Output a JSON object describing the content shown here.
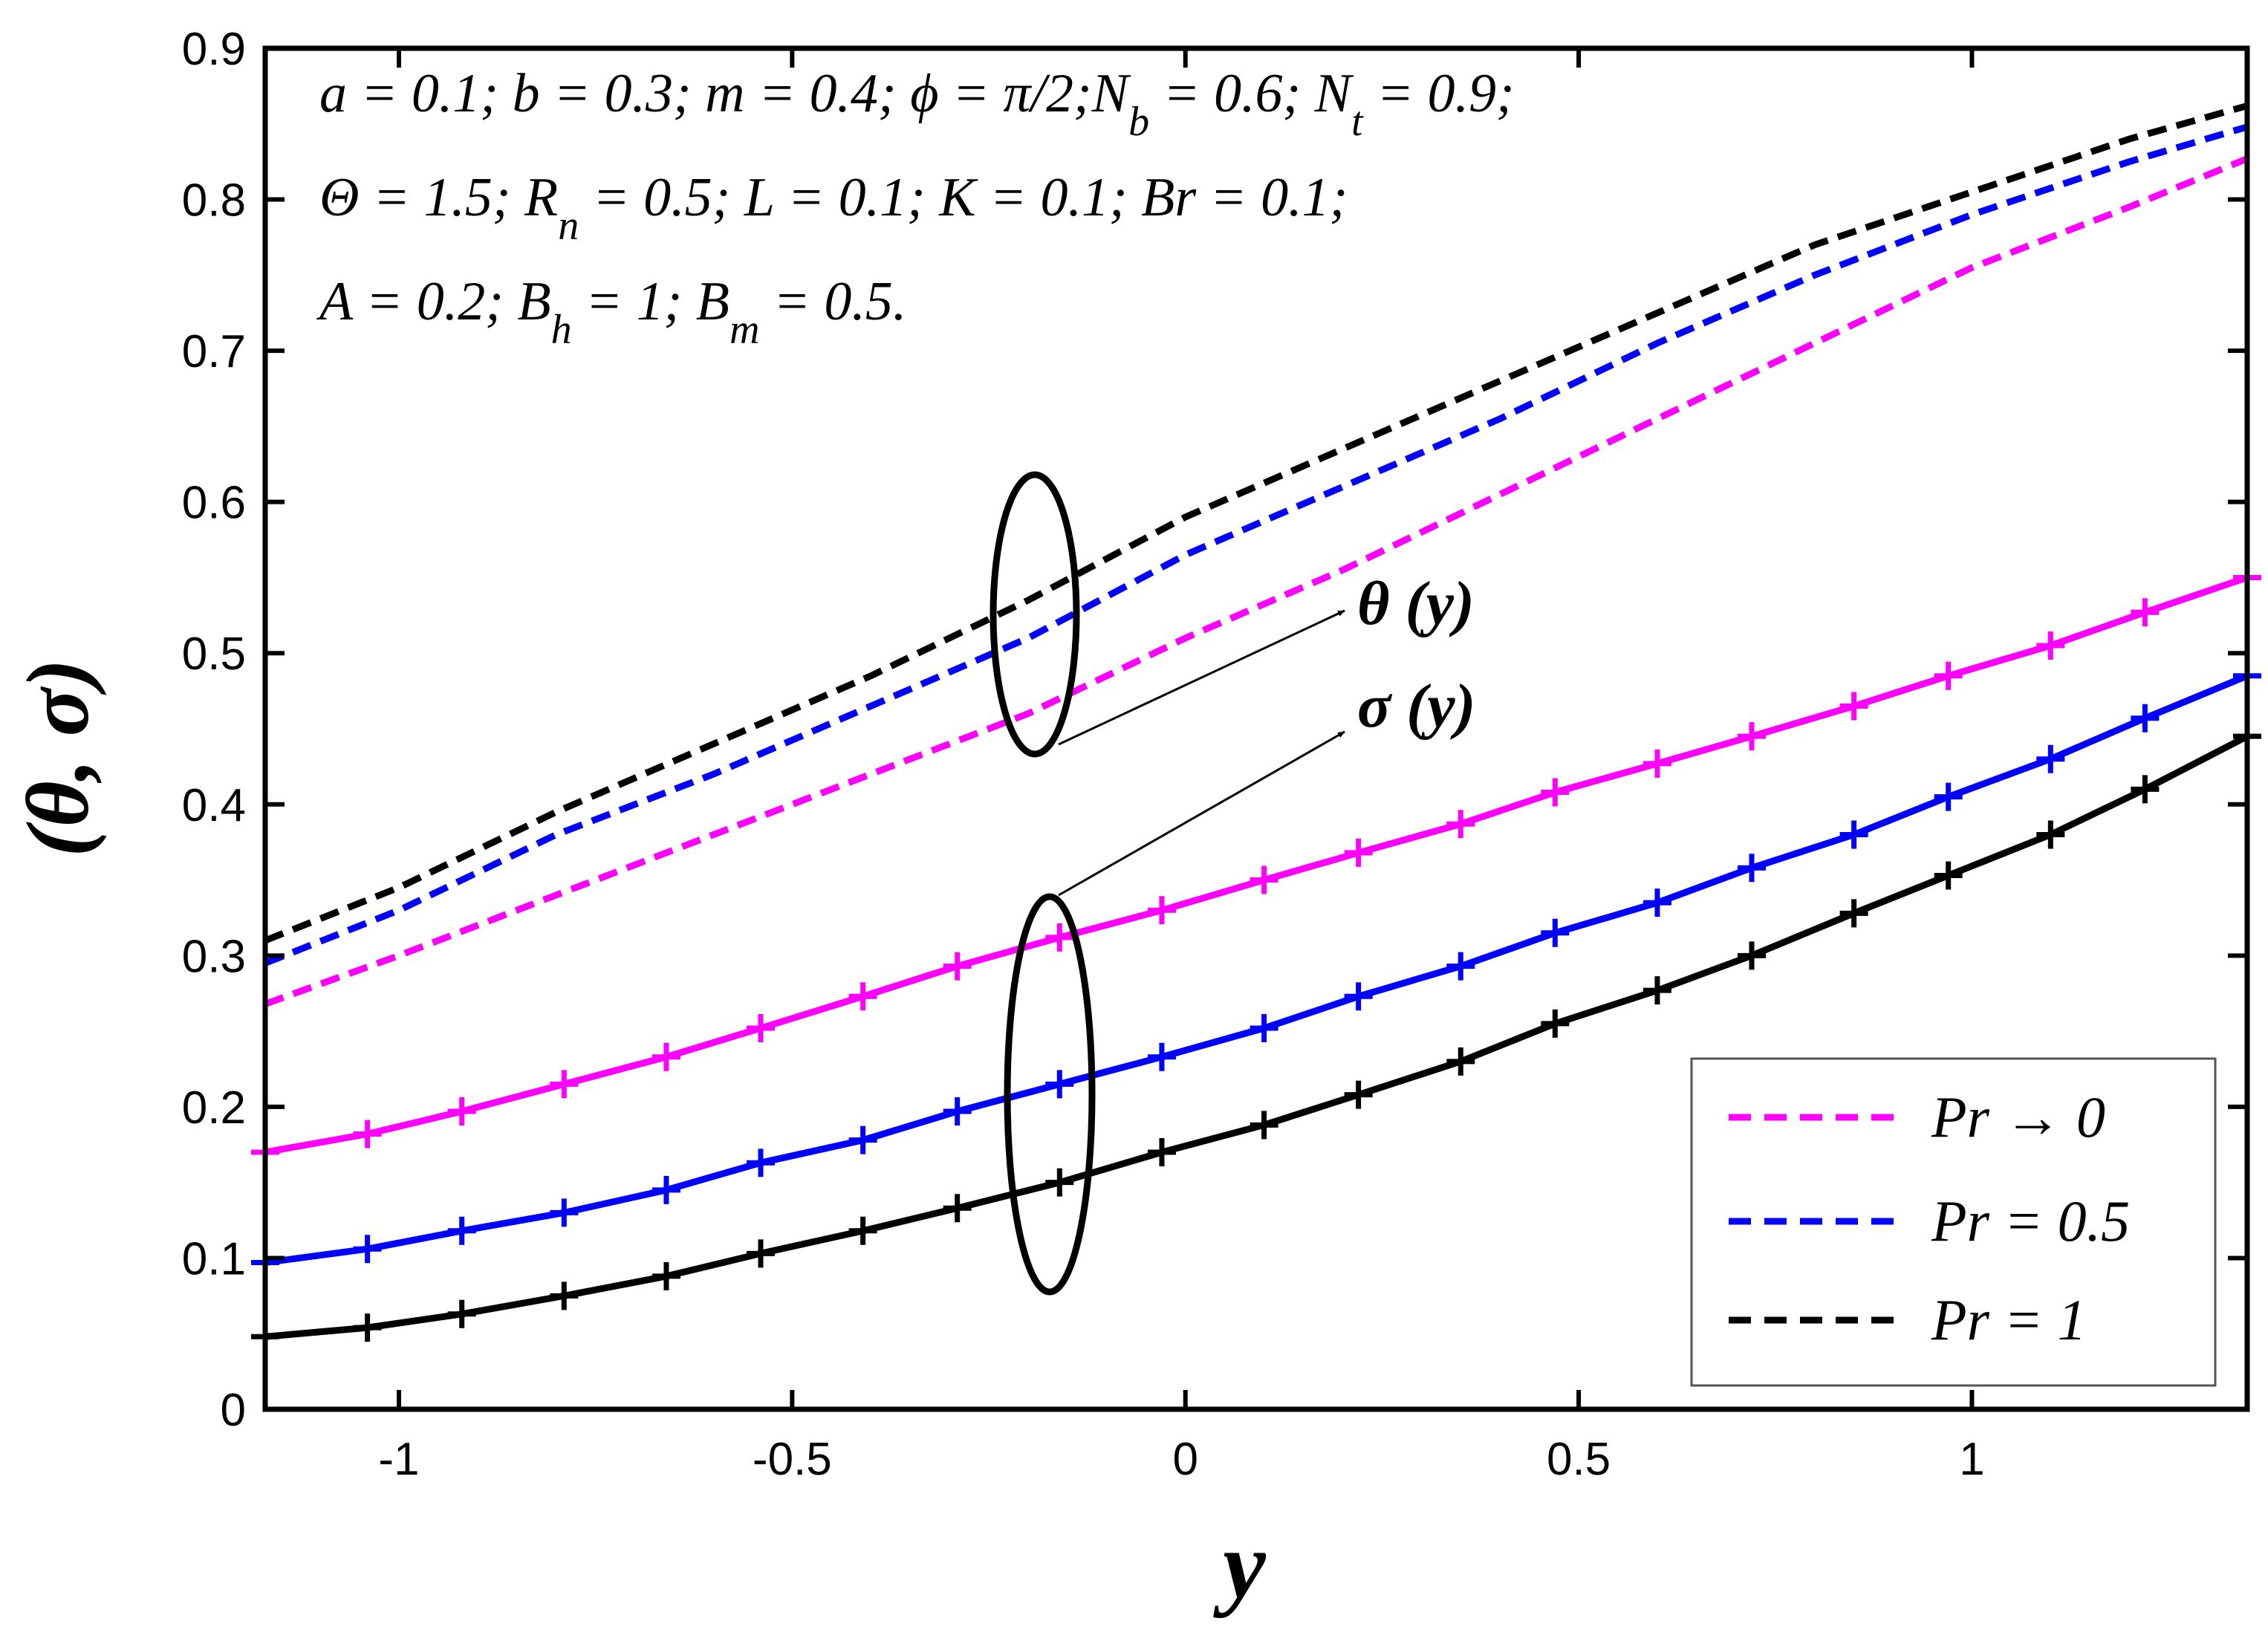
{
  "chart_data": {
    "type": "line",
    "xlabel": "y",
    "ylabel": "(θ, σ)",
    "xlim": [
      -1.17,
      1.35
    ],
    "ylim": [
      0,
      0.9
    ],
    "grid": false,
    "legend_placement": "bottom-right",
    "x_ticks": [
      -1,
      -0.5,
      0,
      0.5,
      1
    ],
    "x_tick_labels": [
      "-1",
      "-0.5",
      "0",
      "0.5",
      "1"
    ],
    "y_ticks": [
      0,
      0.1,
      0.2,
      0.3,
      0.4,
      0.5,
      0.6,
      0.7,
      0.8,
      0.9
    ],
    "y_tick_labels": [
      "0",
      "0.1",
      "0.2",
      "0.3",
      "0.4",
      "0.5",
      "0.6",
      "0.7",
      "0.8",
      "0.9"
    ],
    "parameter_lines": [
      {
        "segments": [
          {
            "t": "a = 0.1; b = 0.3; m = 0.4; "
          },
          {
            "t": "ϕ = π/2;N"
          },
          {
            "t": "b",
            "sub": true
          },
          {
            "t": " = 0.6; N"
          },
          {
            "t": "t",
            "sub": true
          },
          {
            "t": " = 0.9;"
          }
        ]
      },
      {
        "segments": [
          {
            "t": "Θ = 1.5; R"
          },
          {
            "t": "n",
            "sub": true
          },
          {
            "t": " = 0.5; L = 0.1; K = 0.1; Br = 0.1;"
          }
        ]
      },
      {
        "segments": [
          {
            "t": "A = 0.2; B"
          },
          {
            "t": "h",
            "sub": true
          },
          {
            "t": " = 1; B"
          },
          {
            "t": "m",
            "sub": true
          },
          {
            "t": " = 0.5."
          }
        ]
      }
    ],
    "annotations": {
      "theta_label": "θ (y)",
      "sigma_label": "σ (y)"
    },
    "legend": [
      {
        "label": "Pr → 0",
        "color": "#ff00ff",
        "style": "dashed"
      },
      {
        "label": "Pr = 0.5",
        "color": "#0000ff",
        "style": "dashed"
      },
      {
        "label": "Pr = 1",
        "color": "#000000",
        "style": "dashed"
      }
    ],
    "series": [
      {
        "name": "θ, Pr → 0",
        "group": "theta",
        "color": "#ff00ff",
        "style": "dashed",
        "x": [
          -1.17,
          -1.0,
          -0.8,
          -0.6,
          -0.4,
          -0.2,
          0.0,
          0.2,
          0.4,
          0.6,
          0.8,
          1.0,
          1.2,
          1.35
        ],
        "y": [
          0.268,
          0.3,
          0.34,
          0.38,
          0.42,
          0.46,
          0.51,
          0.555,
          0.605,
          0.655,
          0.705,
          0.755,
          0.795,
          0.827
        ]
      },
      {
        "name": "θ, Pr = 0.5",
        "group": "theta",
        "color": "#0000ff",
        "style": "dashed",
        "x": [
          -1.17,
          -1.0,
          -0.8,
          -0.6,
          -0.4,
          -0.2,
          0.0,
          0.2,
          0.4,
          0.6,
          0.8,
          1.0,
          1.2,
          1.35
        ],
        "y": [
          0.295,
          0.33,
          0.38,
          0.42,
          0.465,
          0.51,
          0.565,
          0.61,
          0.655,
          0.705,
          0.75,
          0.79,
          0.825,
          0.848
        ]
      },
      {
        "name": "θ, Pr = 1",
        "group": "theta",
        "color": "#000000",
        "style": "dashed",
        "x": [
          -1.17,
          -1.0,
          -0.8,
          -0.6,
          -0.4,
          -0.2,
          0.0,
          0.2,
          0.4,
          0.6,
          0.8,
          1.0,
          1.2,
          1.35
        ],
        "y": [
          0.31,
          0.345,
          0.395,
          0.44,
          0.485,
          0.535,
          0.59,
          0.635,
          0.68,
          0.725,
          0.77,
          0.805,
          0.84,
          0.862
        ]
      },
      {
        "name": "σ, Pr → 0",
        "group": "sigma",
        "color": "#ff00ff",
        "style": "solid",
        "x": [
          -1.17,
          -1.04,
          -0.92,
          -0.79,
          -0.66,
          -0.54,
          -0.41,
          -0.29,
          -0.16,
          -0.03,
          0.1,
          0.22,
          0.35,
          0.47,
          0.6,
          0.72,
          0.85,
          0.97,
          1.1,
          1.22,
          1.35
        ],
        "y": [
          0.17,
          0.182,
          0.197,
          0.215,
          0.233,
          0.252,
          0.273,
          0.293,
          0.312,
          0.33,
          0.35,
          0.368,
          0.387,
          0.408,
          0.427,
          0.445,
          0.465,
          0.485,
          0.505,
          0.527,
          0.55
        ]
      },
      {
        "name": "σ, Pr = 0.5",
        "group": "sigma",
        "color": "#0000ff",
        "style": "solid",
        "x": [
          -1.17,
          -1.04,
          -0.92,
          -0.79,
          -0.66,
          -0.54,
          -0.41,
          -0.29,
          -0.16,
          -0.03,
          0.1,
          0.22,
          0.35,
          0.47,
          0.6,
          0.72,
          0.85,
          0.97,
          1.1,
          1.22,
          1.35
        ],
        "y": [
          0.097,
          0.106,
          0.118,
          0.13,
          0.145,
          0.163,
          0.178,
          0.197,
          0.215,
          0.233,
          0.252,
          0.273,
          0.293,
          0.315,
          0.335,
          0.358,
          0.38,
          0.405,
          0.43,
          0.457,
          0.485
        ]
      },
      {
        "name": "σ, Pr = 1",
        "group": "sigma",
        "color": "#000000",
        "style": "solid",
        "x": [
          -1.17,
          -1.04,
          -0.92,
          -0.79,
          -0.66,
          -0.54,
          -0.41,
          -0.29,
          -0.16,
          -0.03,
          0.1,
          0.22,
          0.35,
          0.47,
          0.6,
          0.72,
          0.85,
          0.97,
          1.1,
          1.22,
          1.35
        ],
        "y": [
          0.048,
          0.054,
          0.063,
          0.075,
          0.088,
          0.103,
          0.118,
          0.133,
          0.15,
          0.17,
          0.188,
          0.208,
          0.23,
          0.255,
          0.277,
          0.3,
          0.328,
          0.353,
          0.38,
          0.41,
          0.445
        ]
      }
    ]
  }
}
